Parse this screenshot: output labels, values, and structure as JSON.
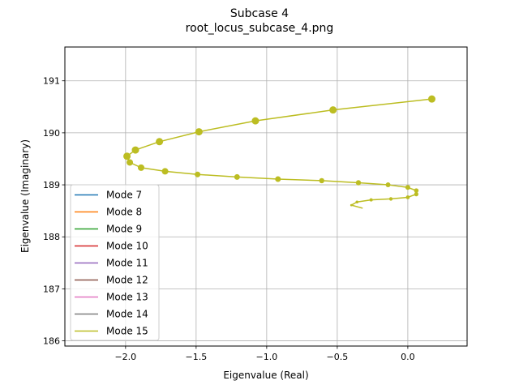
{
  "figure": {
    "title_line1": "Subcase 4",
    "title_line2": "root_locus_subcase_4.png"
  },
  "chart_data": {
    "type": "line",
    "xlabel": "Eigenvalue (Real)",
    "ylabel": "Eigenvalue (Imaginary)",
    "xlim": [
      -2.43,
      0.42
    ],
    "ylim": [
      185.9,
      191.65
    ],
    "xticks": [
      -2.0,
      -1.5,
      -1.0,
      -0.5,
      0.0
    ],
    "xtick_labels": [
      "−2.0",
      "−1.5",
      "−1.0",
      "−0.5",
      "0.0"
    ],
    "yticks": [
      186,
      187,
      188,
      189,
      190,
      191
    ],
    "ytick_labels": [
      "186",
      "187",
      "188",
      "189",
      "190",
      "191"
    ],
    "grid": true,
    "legend_position": "lower-left",
    "series": [
      {
        "name": "Mode 7",
        "color": "#1f77b4",
        "points": []
      },
      {
        "name": "Mode 8",
        "color": "#ff7f0e",
        "points": []
      },
      {
        "name": "Mode 9",
        "color": "#2ca02c",
        "points": []
      },
      {
        "name": "Mode 10",
        "color": "#d62728",
        "points": []
      },
      {
        "name": "Mode 11",
        "color": "#9467bd",
        "points": []
      },
      {
        "name": "Mode 12",
        "color": "#8c564b",
        "points": []
      },
      {
        "name": "Mode 13",
        "color": "#e377c2",
        "points": []
      },
      {
        "name": "Mode 14",
        "color": "#7f7f7f",
        "points": []
      },
      {
        "name": "Mode 15",
        "color": "#bcbd22",
        "points": [
          {
            "x": 0.17,
            "y": 190.65,
            "marker_size": 4.5
          },
          {
            "x": -0.53,
            "y": 190.44,
            "marker_size": 4.5
          },
          {
            "x": -1.08,
            "y": 190.23,
            "marker_size": 4.5
          },
          {
            "x": -1.48,
            "y": 190.02,
            "marker_size": 4.5
          },
          {
            "x": -1.76,
            "y": 189.83,
            "marker_size": 4.5
          },
          {
            "x": -1.93,
            "y": 189.67,
            "marker_size": 4.5
          },
          {
            "x": -1.99,
            "y": 189.55,
            "marker_size": 4.5
          },
          {
            "x": -1.97,
            "y": 189.43,
            "marker_size": 4.0
          },
          {
            "x": -1.89,
            "y": 189.33,
            "marker_size": 4.0
          },
          {
            "x": -1.72,
            "y": 189.26,
            "marker_size": 4.0
          },
          {
            "x": -1.49,
            "y": 189.2,
            "marker_size": 3.5
          },
          {
            "x": -1.21,
            "y": 189.15,
            "marker_size": 3.5
          },
          {
            "x": -0.92,
            "y": 189.11,
            "marker_size": 3.5
          },
          {
            "x": -0.61,
            "y": 189.08,
            "marker_size": 3.2
          },
          {
            "x": -0.35,
            "y": 189.04,
            "marker_size": 3.2
          },
          {
            "x": -0.14,
            "y": 189.0,
            "marker_size": 3.0
          },
          {
            "x": 0.0,
            "y": 188.95,
            "marker_size": 3.0
          },
          {
            "x": 0.06,
            "y": 188.89,
            "marker_size": 2.8
          },
          {
            "x": 0.06,
            "y": 188.82,
            "marker_size": 2.6
          },
          {
            "x": 0.0,
            "y": 188.76,
            "marker_size": 2.4
          },
          {
            "x": -0.12,
            "y": 188.73,
            "marker_size": 2.2
          },
          {
            "x": -0.26,
            "y": 188.71,
            "marker_size": 2.0
          },
          {
            "x": -0.36,
            "y": 188.67,
            "marker_size": 1.8
          },
          {
            "x": -0.4,
            "y": 188.61,
            "marker_size": 1.4
          },
          {
            "x": -0.32,
            "y": 188.55,
            "marker_size": 0
          }
        ]
      }
    ]
  }
}
